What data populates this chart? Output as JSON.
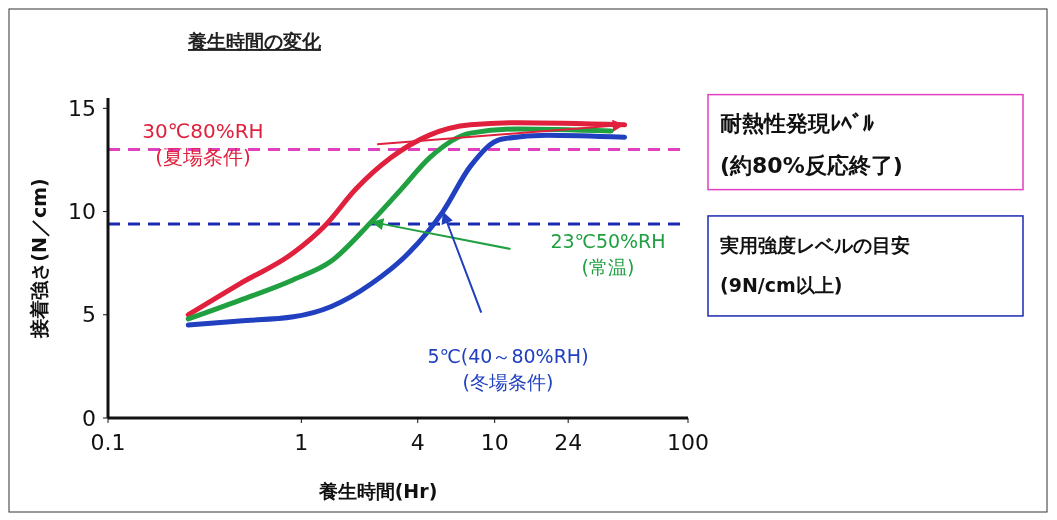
{
  "chart_data": {
    "type": "line",
    "title": "養生時間の変化",
    "xlabel": "養生時間(Hr)",
    "ylabel": "接着強さ(N／cm)",
    "log": "x",
    "xlim": [
      0.1,
      100
    ],
    "xticks": [
      0.1,
      1,
      4,
      10,
      24,
      100
    ],
    "ylim": [
      0,
      15.5
    ],
    "yticks": [
      0,
      5,
      10,
      15
    ],
    "grid": false,
    "legend": false,
    "line_style": "solid",
    "marker": "none",
    "series": [
      {
        "name": "30℃80%RH\n(夏場条件)",
        "color": "#e0203c",
        "x": [
          0.26,
          0.48,
          0.91,
          1.32,
          1.92,
          2.9,
          4.6,
          7.5,
          13.2,
          47
        ],
        "values": [
          5.0,
          6.5,
          8.0,
          9.3,
          11.1,
          12.6,
          13.7,
          14.2,
          14.3,
          14.2
        ]
      },
      {
        "name": "23℃50%RH\n(常温)",
        "color": "#20a040",
        "x": [
          0.26,
          0.48,
          0.91,
          1.43,
          2.3,
          3.3,
          4.6,
          7.5,
          13.2,
          40
        ],
        "values": [
          4.8,
          5.7,
          6.7,
          7.6,
          9.5,
          11.1,
          12.6,
          13.8,
          14.0,
          13.9
        ]
      },
      {
        "name": "5℃(40～80%RH)\n(冬場条件)",
        "color": "#2040c0",
        "x": [
          0.26,
          0.48,
          0.91,
          1.43,
          2.3,
          3.6,
          5.4,
          7.5,
          10.8,
          18.6,
          47
        ],
        "values": [
          4.5,
          4.7,
          4.9,
          5.4,
          6.5,
          8.0,
          10.0,
          12.2,
          13.5,
          13.7,
          13.6
        ]
      }
    ],
    "ref_lines": [
      {
        "axis": "y",
        "value": 13,
        "label": "耐熱性発現ﾚﾍﾞﾙ\n(約80%反応終了)",
        "color": "#e040c0",
        "line_style": "dashed"
      },
      {
        "axis": "y",
        "value": 9.4,
        "label": "実用強度レベルの目安\n(9N/cm以上)",
        "color": "#1a2ab0",
        "line_style": "dashed"
      }
    ]
  }
}
